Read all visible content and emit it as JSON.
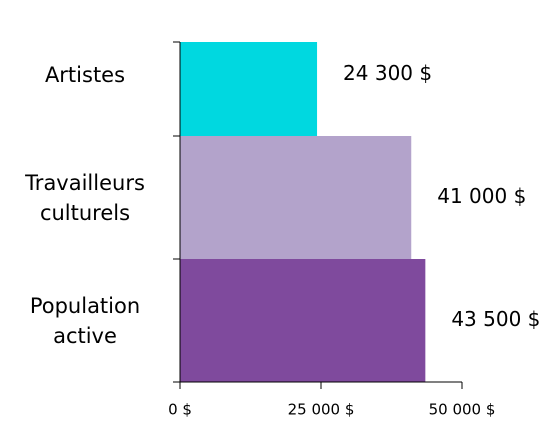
{
  "chart_data": {
    "type": "hbar",
    "categories": [
      "Artistes",
      "Travailleurs culturels",
      "Population active"
    ],
    "values": [
      24300,
      41000,
      43500
    ],
    "value_labels": [
      "24 300 $",
      "41 000 $",
      "43 500 $"
    ],
    "colors": [
      "#00d8e0",
      "#b3a3cb",
      "#7f4a9d"
    ],
    "xlim": [
      0,
      50000
    ],
    "xticks": [
      {
        "value": 0,
        "label": "0 $"
      },
      {
        "value": 25000,
        "label": "25 000 $"
      },
      {
        "value": 50000,
        "label": "50 000 $"
      }
    ]
  }
}
